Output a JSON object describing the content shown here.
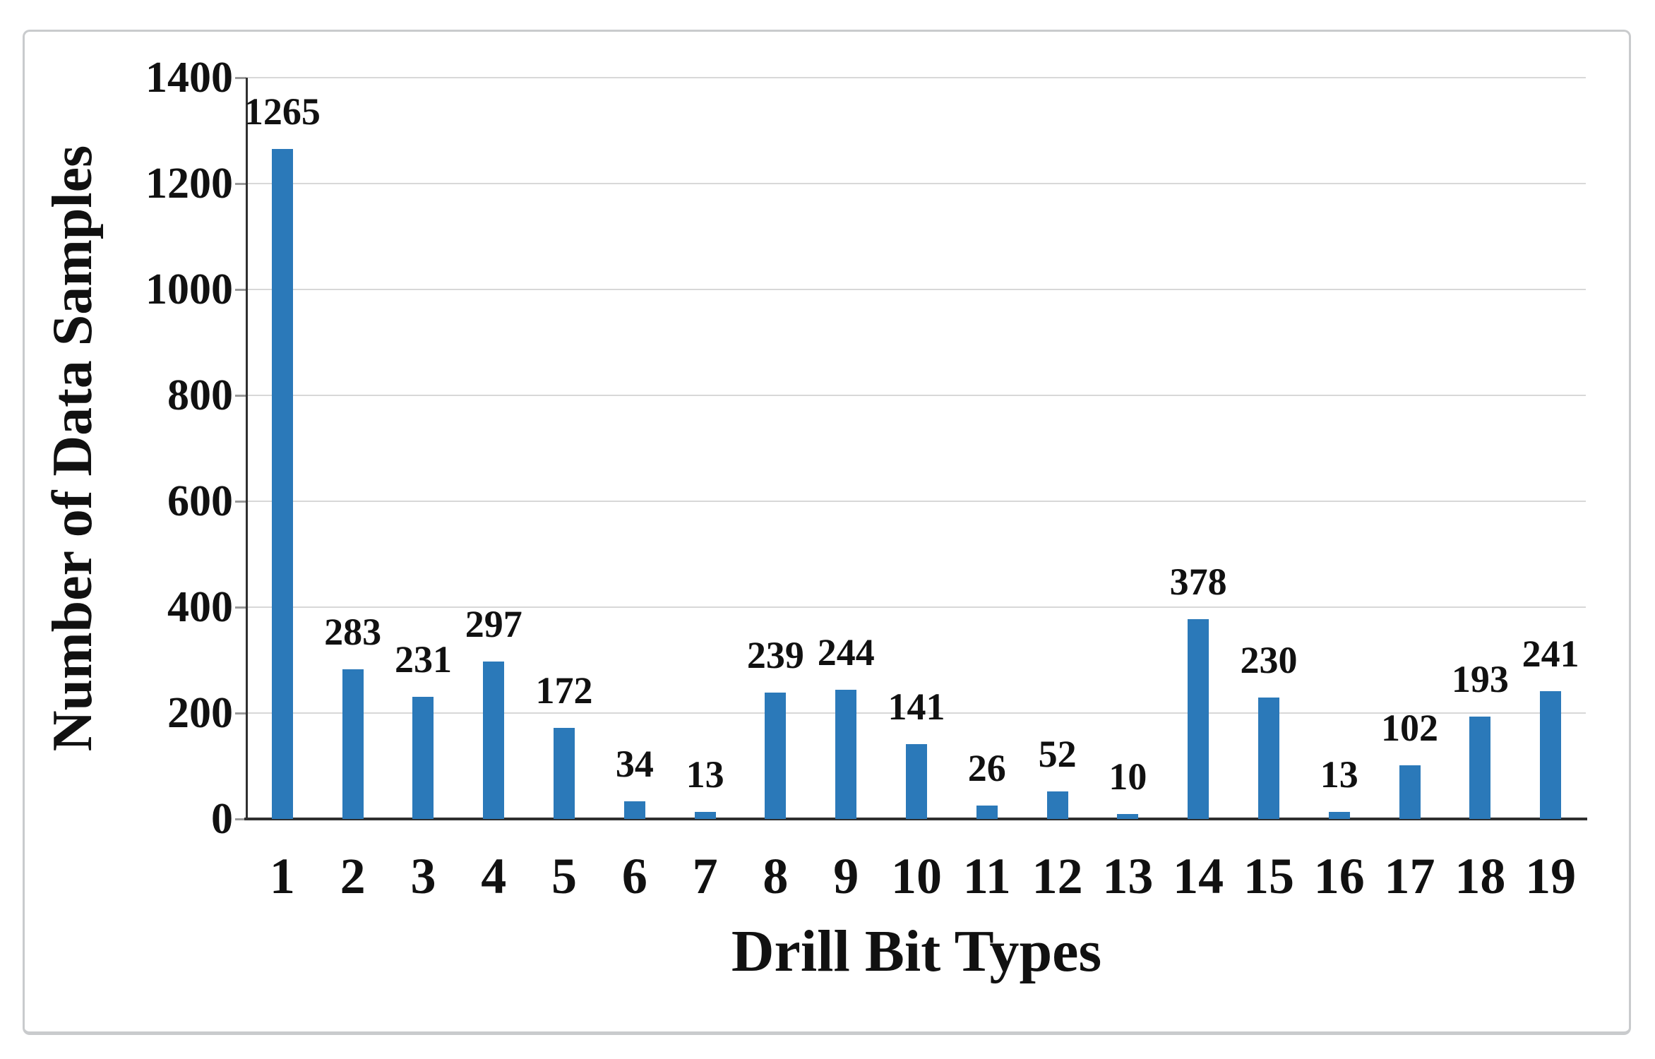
{
  "figure": {
    "background_color": "#ffffff",
    "border_color": "#c9cbcd"
  },
  "chart_data": {
    "type": "bar",
    "title": "",
    "xlabel": "Drill Bit Types",
    "ylabel": "Number of Data Samples",
    "categories": [
      "1",
      "2",
      "3",
      "4",
      "5",
      "6",
      "7",
      "8",
      "9",
      "10",
      "11",
      "12",
      "13",
      "14",
      "15",
      "16",
      "17",
      "18",
      "19"
    ],
    "values": [
      1265,
      283,
      231,
      297,
      172,
      34,
      13,
      239,
      244,
      141,
      26,
      52,
      10,
      378,
      230,
      13,
      102,
      193,
      241
    ],
    "data_labels": [
      "1265",
      "283",
      "231",
      "297",
      "172",
      "34",
      "13",
      "239",
      "244",
      "141",
      "26",
      "52",
      "10",
      "378",
      "230",
      "13",
      "102",
      "193",
      "241"
    ],
    "ylim": [
      0,
      1400
    ],
    "ytick_step": 200,
    "ytick_labels": [
      "0",
      "200",
      "400",
      "600",
      "800",
      "1000",
      "1200",
      "1400"
    ],
    "grid": true,
    "legend_position": "none",
    "bar_color": "#2b79b9",
    "gridline_color": "#d8d8d8",
    "axis_color": "#2f2f2f",
    "tick_color": "#9a9a9a",
    "text_color": "#111111"
  }
}
